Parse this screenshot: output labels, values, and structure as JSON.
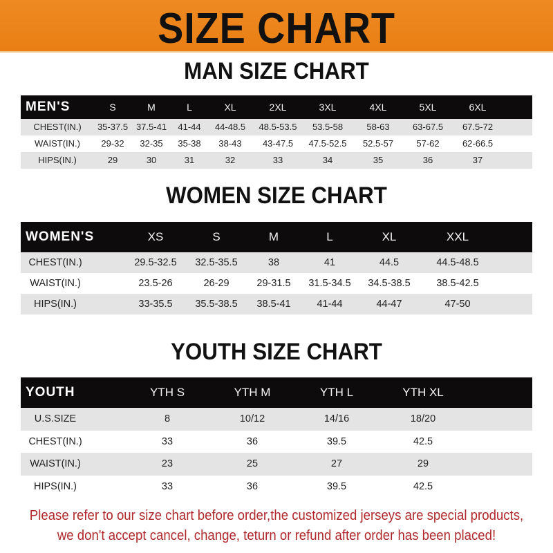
{
  "title": "SIZE CHART",
  "colors": {
    "banner": "#ee8a22",
    "header_row": "#0d0b0b",
    "alt_row": "#e4e4e4",
    "note": "#b0282a"
  },
  "men": {
    "title": "MAN SIZE CHART",
    "header": [
      "MEN'S",
      "S",
      "M",
      "L",
      "XL",
      "2XL",
      "3XL",
      "4XL",
      "5XL",
      "6XL"
    ],
    "rows": [
      [
        "CHEST(IN.)",
        "35-37.5",
        "37.5-41",
        "41-44",
        "44-48.5",
        "48.5-53.5",
        "53.5-58",
        "58-63",
        "63-67.5",
        "67.5-72"
      ],
      [
        "WAIST(IN.)",
        "29-32",
        "32-35",
        "35-38",
        "38-43",
        "43-47.5",
        "47.5-52.5",
        "52.5-57",
        "57-62",
        "62-66.5"
      ],
      [
        "HIPS(IN.)",
        "29",
        "30",
        "31",
        "32",
        "33",
        "34",
        "35",
        "36",
        "37"
      ]
    ]
  },
  "women": {
    "title": "WOMEN SIZE CHART",
    "header": [
      "WOMEN'S",
      "XS",
      "S",
      "M",
      "L",
      "XL",
      "XXL"
    ],
    "rows": [
      [
        "CHEST(IN.)",
        "29.5-32.5",
        "32.5-35.5",
        "38",
        "41",
        "44.5",
        "44.5-48.5"
      ],
      [
        "WAIST(IN.)",
        "23.5-26",
        "26-29",
        "29-31.5",
        "31.5-34.5",
        "34.5-38.5",
        "38.5-42.5"
      ],
      [
        "HIPS(IN.)",
        "33-35.5",
        "35.5-38.5",
        "38.5-41",
        "41-44",
        "44-47",
        "47-50"
      ]
    ]
  },
  "youth": {
    "title": "YOUTH SIZE CHART",
    "header": [
      "YOUTH",
      "YTH S",
      "YTH M",
      "YTH L",
      "YTH XL"
    ],
    "rows": [
      [
        "U.S.SIZE",
        "8",
        "10/12",
        "14/16",
        "18/20"
      ],
      [
        "CHEST(IN.)",
        "33",
        "36",
        "39.5",
        "42.5"
      ],
      [
        "WAIST(IN.)",
        "23",
        "25",
        "27",
        "29"
      ],
      [
        "HIPS(IN.)",
        "33",
        "36",
        "39.5",
        "42.5"
      ]
    ]
  },
  "note": {
    "line1": "Please refer to our size chart before order,the customized jerseys are special products,",
    "line2": "we don't accept cancel, change, teturn or refund after order has been placed!"
  }
}
